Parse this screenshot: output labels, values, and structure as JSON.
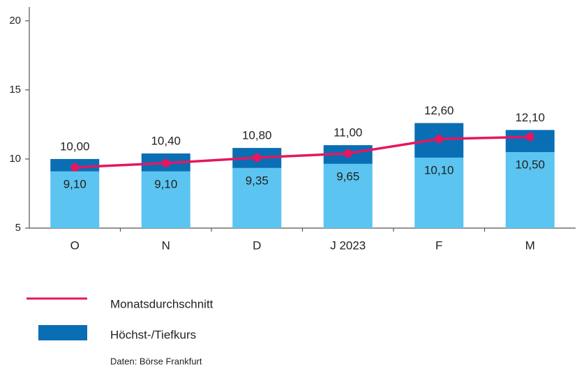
{
  "chart_data": {
    "type": "range_bar_line",
    "categories": [
      "O",
      "N",
      "D",
      "J 2023",
      "F",
      "M"
    ],
    "series": [
      {
        "name": "Höchst-/Tiefkurs",
        "color": "#0a6eb4",
        "low_color": "#5bc4f0",
        "low": [
          9.1,
          9.1,
          9.35,
          9.65,
          10.1,
          10.5
        ],
        "low_labels": [
          "9,10",
          "9,10",
          "9,35",
          "9,65",
          "10,10",
          "10,50"
        ],
        "high": [
          10.0,
          10.4,
          10.8,
          11.0,
          12.6,
          12.1
        ],
        "high_labels": [
          "10,00",
          "10,40",
          "10,80",
          "11,00",
          "12,60",
          "12,10"
        ]
      },
      {
        "name": "Monatsdurchschnitt",
        "color": "#e5175f",
        "values": [
          9.4,
          9.7,
          10.1,
          10.4,
          11.45,
          11.6
        ]
      }
    ],
    "ylim": [
      5,
      21
    ],
    "yticks": [
      5,
      10,
      15,
      20
    ],
    "source": "Daten: Börse Frankfurt"
  }
}
